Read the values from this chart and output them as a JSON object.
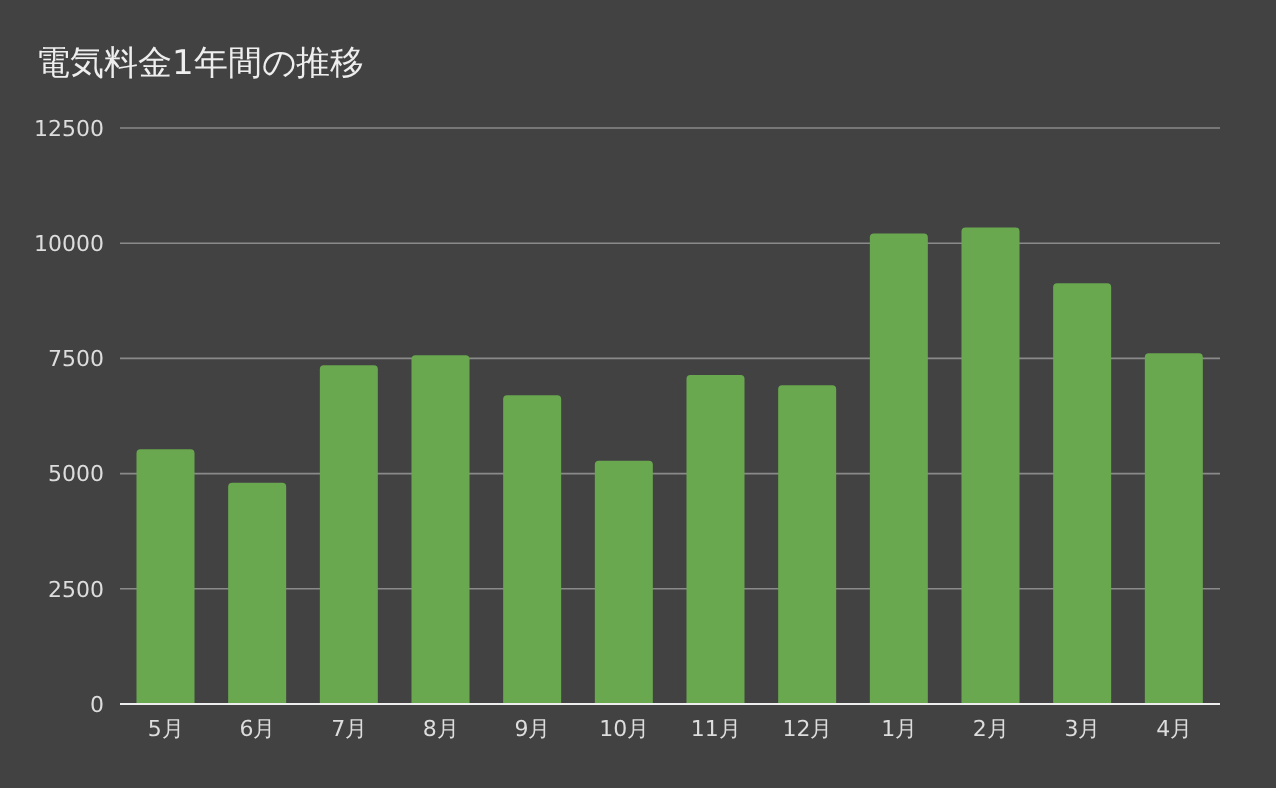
{
  "chart_data": {
    "type": "bar",
    "title": "電気料金1年間の推移",
    "categories": [
      "5月",
      "6月",
      "7月",
      "8月",
      "9月",
      "10月",
      "11月",
      "12月",
      "1月",
      "2月",
      "3月",
      "4月"
    ],
    "values": [
      5530,
      4800,
      7350,
      7570,
      6700,
      5280,
      7140,
      6920,
      10210,
      10340,
      9130,
      7610
    ],
    "color": "#6aa84f",
    "ylim": [
      0,
      12500
    ],
    "yticks": [
      0,
      2500,
      5000,
      7500,
      10000,
      12500
    ],
    "grid": "y",
    "legend": false
  }
}
